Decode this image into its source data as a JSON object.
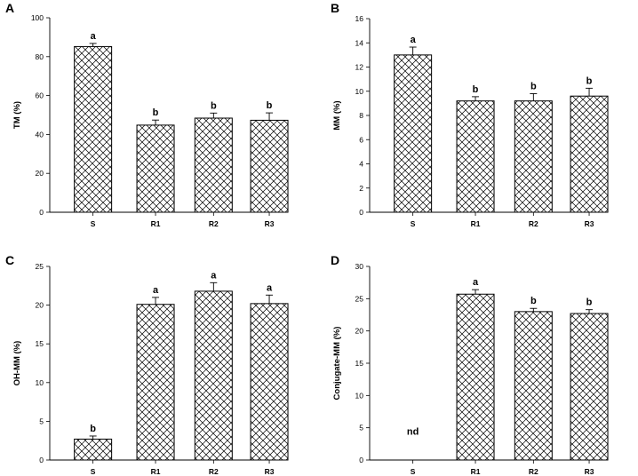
{
  "chart_data": [
    {
      "panel": "A",
      "type": "bar",
      "ylabel": "TM (%)",
      "xlabel": "",
      "categories": [
        "S",
        "R1",
        "R2",
        "R3"
      ],
      "values": [
        85.2,
        44.8,
        48.4,
        47.3
      ],
      "errors": [
        1.6,
        2.6,
        2.6,
        3.8
      ],
      "significance": [
        "a",
        "b",
        "b",
        "b"
      ],
      "ylim": [
        0,
        100
      ],
      "yticks": [
        0,
        20,
        40,
        60,
        80,
        100
      ]
    },
    {
      "panel": "B",
      "type": "bar",
      "ylabel": "MM (%)",
      "xlabel": "",
      "categories": [
        "S",
        "R1",
        "R2",
        "R3"
      ],
      "values": [
        13.0,
        9.2,
        9.2,
        9.6
      ],
      "errors": [
        0.65,
        0.35,
        0.6,
        0.65
      ],
      "significance": [
        "a",
        "b",
        "b",
        "b"
      ],
      "ylim": [
        0,
        16
      ],
      "yticks": [
        0,
        2,
        4,
        6,
        8,
        10,
        12,
        14,
        16
      ]
    },
    {
      "panel": "C",
      "type": "bar",
      "ylabel": "OH-MM (%)",
      "xlabel": "",
      "categories": [
        "S",
        "R1",
        "R2",
        "R3"
      ],
      "values": [
        2.7,
        20.1,
        21.8,
        20.2
      ],
      "errors": [
        0.4,
        0.9,
        1.1,
        1.1
      ],
      "significance": [
        "b",
        "a",
        "a",
        "a"
      ],
      "ylim": [
        0,
        25
      ],
      "yticks": [
        0,
        5,
        10,
        15,
        20,
        25
      ]
    },
    {
      "panel": "D",
      "type": "bar",
      "ylabel": "Conjugate-MM (%)",
      "xlabel": "",
      "categories": [
        "S",
        "R1",
        "R2",
        "R3"
      ],
      "values": [
        0,
        25.7,
        23.0,
        22.7
      ],
      "errors": [
        0,
        0.7,
        0.5,
        0.6
      ],
      "significance": [
        "nd",
        "a",
        "b",
        "b"
      ],
      "ylim": [
        0,
        30
      ],
      "yticks": [
        0,
        5,
        10,
        15,
        20,
        25,
        30
      ]
    }
  ]
}
